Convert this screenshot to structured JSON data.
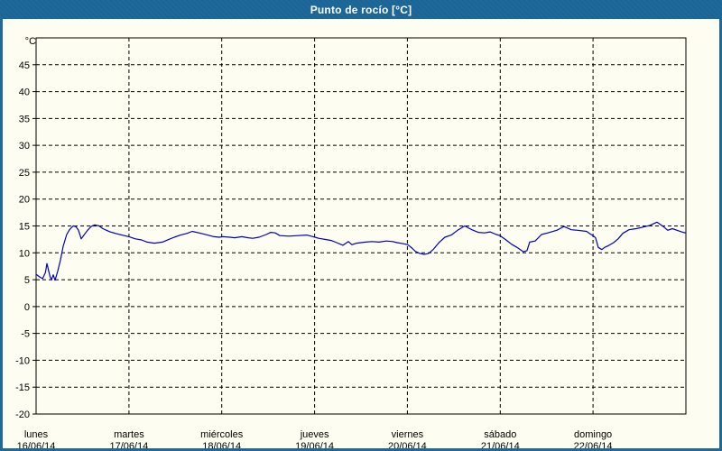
{
  "window": {
    "title": "Punto de rocío [°C]"
  },
  "colors": {
    "frame": "#1E699C",
    "background": "#FDFDF2",
    "grid": "#000000",
    "axis_text": "#000000",
    "title_text": "#FFFFFF",
    "series_line": "#0000BE"
  },
  "chart_data": {
    "type": "line",
    "title": "Punto de rocío [°C]",
    "legend": "none",
    "grid": "dashed",
    "y_axis": {
      "unit": "°C",
      "min": -20,
      "max": 50,
      "tick_step": 5,
      "labeled_ticks": [
        45,
        40,
        35,
        30,
        25,
        20,
        15,
        10,
        5,
        0,
        -5,
        -10,
        -15,
        -20
      ],
      "gridlines": [
        45,
        40,
        35,
        30,
        25,
        20,
        15,
        10,
        5,
        0,
        -5,
        -10,
        -15
      ]
    },
    "x_axis": {
      "unit": "days",
      "range_days": 7,
      "gridlines_at_days": [
        1,
        2,
        3,
        4,
        5,
        6
      ],
      "day_labels": [
        {
          "weekday": "lunes",
          "date": "16/06/14"
        },
        {
          "weekday": "martes",
          "date": "17/06/14"
        },
        {
          "weekday": "miércoles",
          "date": "18/06/14"
        },
        {
          "weekday": "jueves",
          "date": "19/06/14"
        },
        {
          "weekday": "viernes",
          "date": "20/06/14"
        },
        {
          "weekday": "sábado",
          "date": "21/06/14"
        },
        {
          "weekday": "domingo",
          "date": "22/06/14"
        }
      ]
    },
    "series": [
      {
        "name": "Punto de rocío",
        "color": "#0000BE",
        "points": [
          [
            0,
            6
          ],
          [
            0.04,
            5.5
          ],
          [
            0.07,
            5.2
          ],
          [
            0.1,
            6.3
          ],
          [
            0.117,
            8
          ],
          [
            0.15,
            5.6
          ],
          [
            0.165,
            5
          ],
          [
            0.185,
            5.9
          ],
          [
            0.204,
            4.9
          ],
          [
            0.233,
            6.6
          ],
          [
            0.262,
            8.6
          ],
          [
            0.292,
            11.2
          ],
          [
            0.33,
            13.4
          ],
          [
            0.36,
            14.3
          ],
          [
            0.399,
            15
          ],
          [
            0.428,
            14.9
          ],
          [
            0.457,
            14.2
          ],
          [
            0.486,
            12.6
          ],
          [
            0.515,
            13.3
          ],
          [
            0.554,
            14.2
          ],
          [
            0.593,
            14.9
          ],
          [
            0.632,
            15.2
          ],
          [
            0.68,
            15
          ],
          [
            0.719,
            14.5
          ],
          [
            0.758,
            14.2
          ],
          [
            0.797,
            13.9
          ],
          [
            0.856,
            13.6
          ],
          [
            0.924,
            13.3
          ],
          [
            1,
            13
          ],
          [
            1.069,
            12.6
          ],
          [
            1.137,
            12.4
          ],
          [
            1.196,
            12
          ],
          [
            1.274,
            11.8
          ],
          [
            1.361,
            12
          ],
          [
            1.429,
            12.5
          ],
          [
            1.488,
            12.9
          ],
          [
            1.556,
            13.3
          ],
          [
            1.624,
            13.6
          ],
          [
            1.682,
            14
          ],
          [
            1.779,
            13.6
          ],
          [
            1.847,
            13.3
          ],
          [
            1.915,
            13
          ],
          [
            1.973,
            12.9
          ],
          [
            2.012,
            13
          ],
          [
            2.09,
            12.9
          ],
          [
            2.139,
            12.8
          ],
          [
            2.217,
            13
          ],
          [
            2.285,
            12.8
          ],
          [
            2.333,
            12.7
          ],
          [
            2.401,
            12.9
          ],
          [
            2.479,
            13.4
          ],
          [
            2.528,
            13.8
          ],
          [
            2.576,
            13.7
          ],
          [
            2.625,
            13.2
          ],
          [
            2.722,
            13.1
          ],
          [
            2.819,
            13.2
          ],
          [
            2.917,
            13.3
          ],
          [
            2.985,
            13
          ],
          [
            3.004,
            12.9
          ],
          [
            3.043,
            12.7
          ],
          [
            3.111,
            12.5
          ],
          [
            3.179,
            12.3
          ],
          [
            3.238,
            11.9
          ],
          [
            3.306,
            11.4
          ],
          [
            3.364,
            12.1
          ],
          [
            3.403,
            11.5
          ],
          [
            3.451,
            11.8
          ],
          [
            3.5,
            11.9
          ],
          [
            3.549,
            12
          ],
          [
            3.617,
            12.1
          ],
          [
            3.694,
            12
          ],
          [
            3.772,
            12.2
          ],
          [
            3.84,
            12.1
          ],
          [
            3.889,
            11.9
          ],
          [
            3.957,
            11.7
          ],
          [
            4.005,
            11.5
          ],
          [
            4.054,
            10.8
          ],
          [
            4.083,
            10.3
          ],
          [
            4.132,
            9.9
          ],
          [
            4.18,
            9.7
          ],
          [
            4.229,
            9.9
          ],
          [
            4.277,
            10.6
          ],
          [
            4.345,
            12
          ],
          [
            4.404,
            12.9
          ],
          [
            4.472,
            13.3
          ],
          [
            4.54,
            14.2
          ],
          [
            4.617,
            15
          ],
          [
            4.695,
            14.3
          ],
          [
            4.763,
            13.8
          ],
          [
            4.831,
            13.7
          ],
          [
            4.89,
            13.9
          ],
          [
            4.958,
            13.4
          ],
          [
            4.997,
            13.2
          ],
          [
            5.055,
            12.5
          ],
          [
            5.123,
            11.6
          ],
          [
            5.181,
            11
          ],
          [
            5.249,
            10.2
          ],
          [
            5.288,
            10.4
          ],
          [
            5.317,
            12
          ],
          [
            5.376,
            12.2
          ],
          [
            5.444,
            13.4
          ],
          [
            5.512,
            13.7
          ],
          [
            5.609,
            14.2
          ],
          [
            5.687,
            14.9
          ],
          [
            5.765,
            14.3
          ],
          [
            5.833,
            14.2
          ],
          [
            5.93,
            14
          ],
          [
            5.979,
            13.4
          ],
          [
            6,
            13.2
          ],
          [
            6.027,
            12.8
          ],
          [
            6.056,
            11
          ],
          [
            6.095,
            10.6
          ],
          [
            6.124,
            11
          ],
          [
            6.173,
            11.4
          ],
          [
            6.221,
            11.9
          ],
          [
            6.27,
            12.6
          ],
          [
            6.319,
            13.6
          ],
          [
            6.387,
            14.3
          ],
          [
            6.465,
            14.5
          ],
          [
            6.542,
            14.8
          ],
          [
            6.61,
            15.1
          ],
          [
            6.688,
            15.7
          ],
          [
            6.756,
            14.9
          ],
          [
            6.805,
            14.2
          ],
          [
            6.853,
            14.5
          ],
          [
            6.921,
            14.1
          ],
          [
            6.97,
            13.8
          ],
          [
            7,
            13.7
          ]
        ]
      }
    ]
  }
}
